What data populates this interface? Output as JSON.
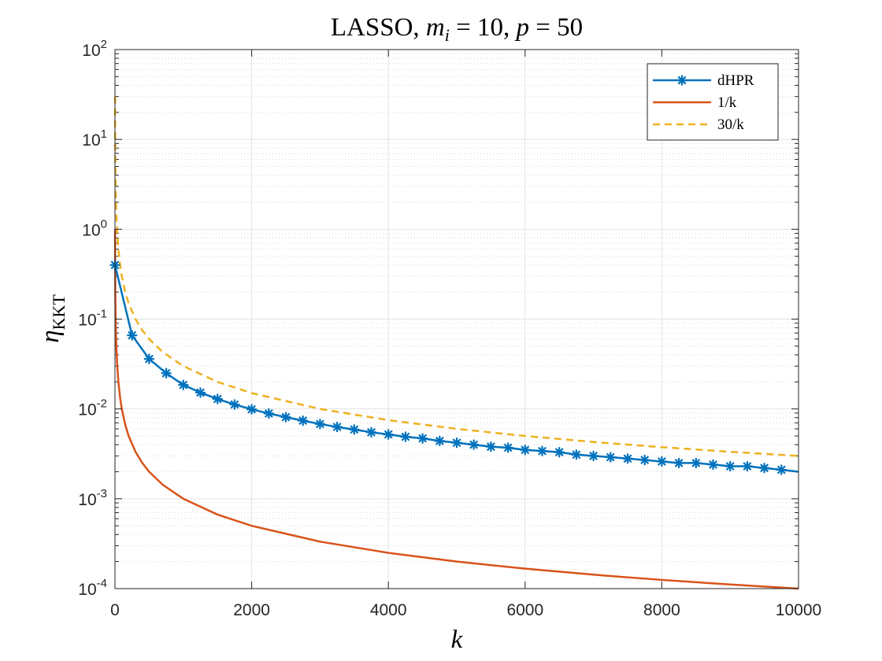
{
  "chart_data": {
    "type": "line",
    "title": "LASSO, m_i = 10, p = 50",
    "title_parts": {
      "prefix": "LASSO, ",
      "m": "m",
      "m_sub": "i",
      "m_eq": " = 10, ",
      "p": "p",
      "p_eq": " = 50"
    },
    "xlabel": "k",
    "ylabel": "η_KKT",
    "ylabel_parts": {
      "eta": "η",
      "sub": "KKT"
    },
    "x_scale": "linear",
    "y_scale": "log",
    "xlim": [
      0,
      10000
    ],
    "ylim": [
      0.0001,
      100
    ],
    "x_ticks": [
      0,
      2000,
      4000,
      6000,
      8000,
      10000
    ],
    "x_tick_labels": [
      "0",
      "2000",
      "4000",
      "6000",
      "8000",
      "10000"
    ],
    "y_ticks": [
      {
        "value": 100,
        "base": "10",
        "exp": "2"
      },
      {
        "value": 10,
        "base": "10",
        "exp": "1"
      },
      {
        "value": 1,
        "base": "10",
        "exp": "0"
      },
      {
        "value": 0.1,
        "base": "10",
        "exp": "-1"
      },
      {
        "value": 0.01,
        "base": "10",
        "exp": "-2"
      },
      {
        "value": 0.001,
        "base": "10",
        "exp": "-3"
      },
      {
        "value": 0.0001,
        "base": "10",
        "exp": "-4"
      }
    ],
    "grid": true,
    "legend_position": "top-right",
    "series": [
      {
        "name": "dHPR",
        "legend_label": "dHPR",
        "color": "#0072BD",
        "line_style": "solid",
        "marker": "asterisk",
        "x": [
          0,
          250,
          500,
          750,
          1000,
          1250,
          1500,
          1750,
          2000,
          2250,
          2500,
          2750,
          3000,
          3250,
          3500,
          3750,
          4000,
          4250,
          4500,
          4750,
          5000,
          5250,
          5500,
          5750,
          6000,
          6250,
          6500,
          6750,
          7000,
          7250,
          7500,
          7750,
          8000,
          8250,
          8500,
          8750,
          9000,
          9250,
          9500,
          9750,
          10000
        ],
        "values": [
          0.4,
          0.066,
          0.036,
          0.025,
          0.0185,
          0.0152,
          0.0129,
          0.0112,
          0.0099,
          0.0089,
          0.0081,
          0.0074,
          0.0068,
          0.0063,
          0.0059,
          0.0055,
          0.0052,
          0.0049,
          0.0047,
          0.0044,
          0.0042,
          0.004,
          0.0038,
          0.0037,
          0.0035,
          0.0034,
          0.0033,
          0.0031,
          0.003,
          0.0029,
          0.0028,
          0.0027,
          0.0026,
          0.0025,
          0.0025,
          0.0024,
          0.0023,
          0.0023,
          0.0022,
          0.0021,
          0.002
        ],
        "marker_x": [
          0,
          250,
          500,
          750,
          1000,
          1250,
          1500,
          1750,
          2000,
          2250,
          2500,
          2750,
          3000,
          3250,
          3500,
          3750,
          4000,
          4250,
          4500,
          4750,
          5000,
          5250,
          5500,
          5750,
          6000,
          6250,
          6500,
          6750,
          7000,
          7250,
          7500,
          7750,
          8000,
          8250,
          8500,
          8750,
          9000,
          9250,
          9500,
          9750
        ]
      },
      {
        "name": "1/k",
        "legend_label": "1/k",
        "color": "#D95319",
        "line_style": "solid",
        "marker": "none",
        "formula": "1/k",
        "x": [
          1,
          2,
          3,
          5,
          8,
          10,
          15,
          20,
          30,
          50,
          75,
          100,
          150,
          200,
          300,
          400,
          500,
          700,
          1000,
          1500,
          2000,
          3000,
          4000,
          5000,
          6000,
          7000,
          8000,
          9000,
          10000
        ],
        "values": [
          1,
          0.5,
          0.3333,
          0.2,
          0.125,
          0.1,
          0.06667,
          0.05,
          0.03333,
          0.02,
          0.01333,
          0.01,
          0.006667,
          0.005,
          0.003333,
          0.0025,
          0.002,
          0.001429,
          0.001,
          0.0006667,
          0.0005,
          0.0003333,
          0.00025,
          0.0002,
          0.0001667,
          0.0001429,
          0.000125,
          0.0001111,
          0.0001
        ]
      },
      {
        "name": "30/k",
        "legend_label": "30/k",
        "color": "#EDB120",
        "line_style": "dashed",
        "marker": "none",
        "formula": "30/k",
        "x": [
          1,
          2,
          3,
          5,
          8,
          10,
          15,
          20,
          30,
          50,
          75,
          100,
          150,
          200,
          300,
          400,
          500,
          700,
          1000,
          1500,
          2000,
          3000,
          4000,
          5000,
          6000,
          7000,
          8000,
          9000,
          10000
        ],
        "values": [
          30,
          15,
          10,
          6,
          3.75,
          3,
          2,
          1.5,
          1,
          0.6,
          0.4,
          0.3,
          0.2,
          0.15,
          0.1,
          0.075,
          0.06,
          0.04286,
          0.03,
          0.02,
          0.015,
          0.01,
          0.0075,
          0.006,
          0.005,
          0.004286,
          0.00375,
          0.003333,
          0.003
        ]
      }
    ]
  }
}
